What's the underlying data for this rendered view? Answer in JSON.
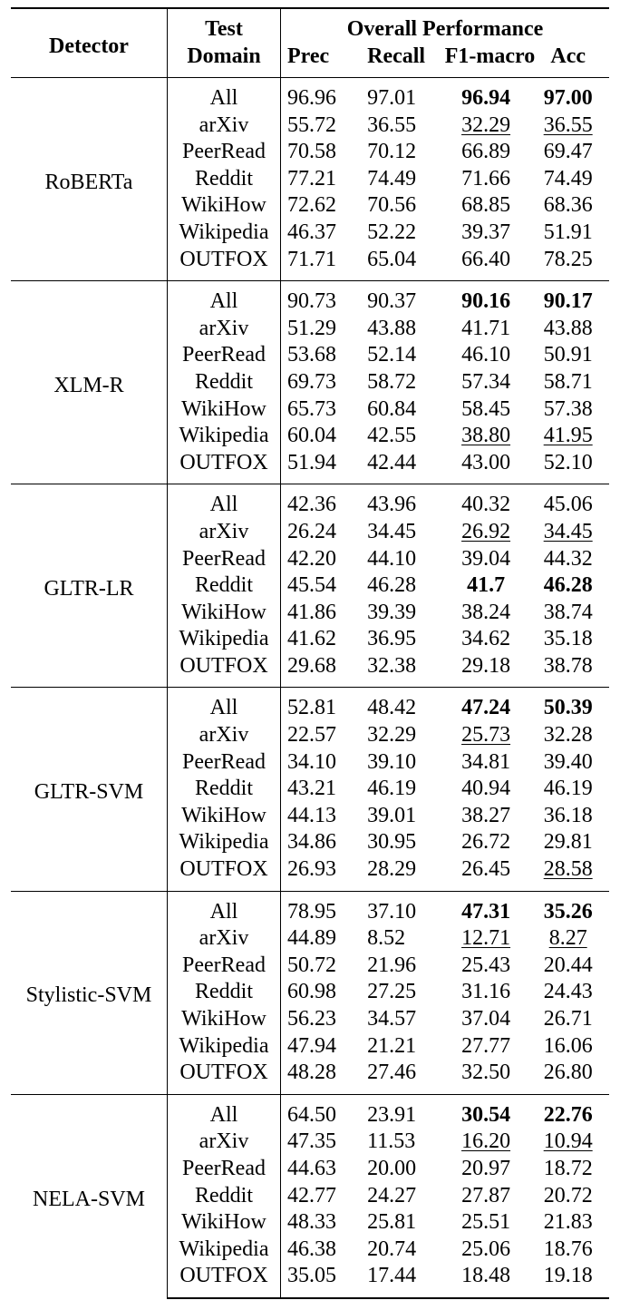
{
  "table": {
    "headers": {
      "detector": "Detector",
      "test_domain_line1": "Test",
      "test_domain_line2": "Domain",
      "overall_performance": "Overall Performance",
      "prec": "Prec",
      "recall": "Recall",
      "f1_macro": "F1-macro",
      "acc": "Acc"
    },
    "groups": [
      {
        "detector": "RoBERTa",
        "rows": [
          {
            "domain": "All",
            "prec": "96.96",
            "recall": "97.01",
            "f1": "96.94",
            "acc": "97.00",
            "f1_style": "bold",
            "acc_style": "bold"
          },
          {
            "domain": "arXiv",
            "prec": "55.72",
            "recall": "36.55",
            "f1": "32.29",
            "acc": "36.55",
            "f1_style": "underline",
            "acc_style": "underline"
          },
          {
            "domain": "PeerRead",
            "prec": "70.58",
            "recall": "70.12",
            "f1": "66.89",
            "acc": "69.47",
            "f1_style": "",
            "acc_style": ""
          },
          {
            "domain": "Reddit",
            "prec": "77.21",
            "recall": "74.49",
            "f1": "71.66",
            "acc": "74.49",
            "f1_style": "",
            "acc_style": ""
          },
          {
            "domain": "WikiHow",
            "prec": "72.62",
            "recall": "70.56",
            "f1": "68.85",
            "acc": "68.36",
            "f1_style": "",
            "acc_style": ""
          },
          {
            "domain": "Wikipedia",
            "prec": "46.37",
            "recall": "52.22",
            "f1": "39.37",
            "acc": "51.91",
            "f1_style": "",
            "acc_style": ""
          },
          {
            "domain": "OUTFOX",
            "prec": "71.71",
            "recall": "65.04",
            "f1": "66.40",
            "acc": "78.25",
            "f1_style": "",
            "acc_style": ""
          }
        ]
      },
      {
        "detector": "XLM-R",
        "rows": [
          {
            "domain": "All",
            "prec": "90.73",
            "recall": "90.37",
            "f1": "90.16",
            "acc": "90.17",
            "f1_style": "bold",
            "acc_style": "bold"
          },
          {
            "domain": "arXiv",
            "prec": "51.29",
            "recall": "43.88",
            "f1": "41.71",
            "acc": "43.88",
            "f1_style": "",
            "acc_style": ""
          },
          {
            "domain": "PeerRead",
            "prec": "53.68",
            "recall": "52.14",
            "f1": "46.10",
            "acc": "50.91",
            "f1_style": "",
            "acc_style": ""
          },
          {
            "domain": "Reddit",
            "prec": "69.73",
            "recall": "58.72",
            "f1": "57.34",
            "acc": "58.71",
            "f1_style": "",
            "acc_style": ""
          },
          {
            "domain": "WikiHow",
            "prec": "65.73",
            "recall": "60.84",
            "f1": "58.45",
            "acc": "57.38",
            "f1_style": "",
            "acc_style": ""
          },
          {
            "domain": "Wikipedia",
            "prec": "60.04",
            "recall": "42.55",
            "f1": "38.80",
            "acc": "41.95",
            "f1_style": "underline",
            "acc_style": "underline"
          },
          {
            "domain": "OUTFOX",
            "prec": "51.94",
            "recall": "42.44",
            "f1": "43.00",
            "acc": "52.10",
            "f1_style": "",
            "acc_style": ""
          }
        ]
      },
      {
        "detector": "GLTR-LR",
        "rows": [
          {
            "domain": "All",
            "prec": "42.36",
            "recall": "43.96",
            "f1": "40.32",
            "acc": "45.06",
            "f1_style": "",
            "acc_style": ""
          },
          {
            "domain": "arXiv",
            "prec": "26.24",
            "recall": "34.45",
            "f1": "26.92",
            "acc": "34.45",
            "f1_style": "underline",
            "acc_style": "underline"
          },
          {
            "domain": "PeerRead",
            "prec": "42.20",
            "recall": "44.10",
            "f1": "39.04",
            "acc": "44.32",
            "f1_style": "",
            "acc_style": ""
          },
          {
            "domain": "Reddit",
            "prec": "45.54",
            "recall": "46.28",
            "f1": "41.7",
            "acc": "46.28",
            "f1_style": "bold",
            "acc_style": "bold"
          },
          {
            "domain": "WikiHow",
            "prec": "41.86",
            "recall": "39.39",
            "f1": "38.24",
            "acc": "38.74",
            "f1_style": "",
            "acc_style": ""
          },
          {
            "domain": "Wikipedia",
            "prec": "41.62",
            "recall": "36.95",
            "f1": "34.62",
            "acc": "35.18",
            "f1_style": "",
            "acc_style": ""
          },
          {
            "domain": "OUTFOX",
            "prec": "29.68",
            "recall": "32.38",
            "f1": "29.18",
            "acc": "38.78",
            "f1_style": "",
            "acc_style": ""
          }
        ]
      },
      {
        "detector": "GLTR-SVM",
        "rows": [
          {
            "domain": "All",
            "prec": "52.81",
            "recall": "48.42",
            "f1": "47.24",
            "acc": "50.39",
            "f1_style": "bold",
            "acc_style": "bold"
          },
          {
            "domain": "arXiv",
            "prec": "22.57",
            "recall": "32.29",
            "f1": "25.73",
            "acc": "32.28",
            "f1_style": "underline",
            "acc_style": ""
          },
          {
            "domain": "PeerRead",
            "prec": "34.10",
            "recall": "39.10",
            "f1": "34.81",
            "acc": "39.40",
            "f1_style": "",
            "acc_style": ""
          },
          {
            "domain": "Reddit",
            "prec": "43.21",
            "recall": "46.19",
            "f1": "40.94",
            "acc": "46.19",
            "f1_style": "",
            "acc_style": ""
          },
          {
            "domain": "WikiHow",
            "prec": "44.13",
            "recall": "39.01",
            "f1": "38.27",
            "acc": "36.18",
            "f1_style": "",
            "acc_style": ""
          },
          {
            "domain": "Wikipedia",
            "prec": "34.86",
            "recall": "30.95",
            "f1": "26.72",
            "acc": "29.81",
            "f1_style": "",
            "acc_style": ""
          },
          {
            "domain": "OUTFOX",
            "prec": "26.93",
            "recall": "28.29",
            "f1": "26.45",
            "acc": "28.58",
            "f1_style": "",
            "acc_style": "underline"
          }
        ]
      },
      {
        "detector": "Stylistic-SVM",
        "rows": [
          {
            "domain": "All",
            "prec": "78.95",
            "recall": "37.10",
            "f1": "47.31",
            "acc": "35.26",
            "f1_style": "bold",
            "acc_style": "bold"
          },
          {
            "domain": "arXiv",
            "prec": "44.89",
            "recall": "8.52",
            "f1": "12.71",
            "acc": "8.27",
            "f1_style": "underline",
            "acc_style": "underline"
          },
          {
            "domain": "PeerRead",
            "prec": "50.72",
            "recall": "21.96",
            "f1": "25.43",
            "acc": "20.44",
            "f1_style": "",
            "acc_style": ""
          },
          {
            "domain": "Reddit",
            "prec": "60.98",
            "recall": "27.25",
            "f1": "31.16",
            "acc": "24.43",
            "f1_style": "",
            "acc_style": ""
          },
          {
            "domain": "WikiHow",
            "prec": "56.23",
            "recall": "34.57",
            "f1": "37.04",
            "acc": "26.71",
            "f1_style": "",
            "acc_style": ""
          },
          {
            "domain": "Wikipedia",
            "prec": "47.94",
            "recall": "21.21",
            "f1": "27.77",
            "acc": "16.06",
            "f1_style": "",
            "acc_style": ""
          },
          {
            "domain": "OUTFOX",
            "prec": "48.28",
            "recall": "27.46",
            "f1": "32.50",
            "acc": "26.80",
            "f1_style": "",
            "acc_style": ""
          }
        ]
      },
      {
        "detector": "NELA-SVM",
        "rows": [
          {
            "domain": "All",
            "prec": "64.50",
            "recall": "23.91",
            "f1": "30.54",
            "acc": "22.76",
            "f1_style": "bold",
            "acc_style": "bold"
          },
          {
            "domain": "arXiv",
            "prec": "47.35",
            "recall": "11.53",
            "f1": "16.20",
            "acc": "10.94",
            "f1_style": "underline",
            "acc_style": "underline"
          },
          {
            "domain": "PeerRead",
            "prec": "44.63",
            "recall": "20.00",
            "f1": "20.97",
            "acc": "18.72",
            "f1_style": "",
            "acc_style": ""
          },
          {
            "domain": "Reddit",
            "prec": "42.77",
            "recall": "24.27",
            "f1": "27.87",
            "acc": "20.72",
            "f1_style": "",
            "acc_style": ""
          },
          {
            "domain": "WikiHow",
            "prec": "48.33",
            "recall": "25.81",
            "f1": "25.51",
            "acc": "21.83",
            "f1_style": "",
            "acc_style": ""
          },
          {
            "domain": "Wikipedia",
            "prec": "46.38",
            "recall": "20.74",
            "f1": "25.06",
            "acc": "18.76",
            "f1_style": "",
            "acc_style": ""
          },
          {
            "domain": "OUTFOX",
            "prec": "35.05",
            "recall": "17.44",
            "f1": "18.48",
            "acc": "19.18",
            "f1_style": "",
            "acc_style": ""
          }
        ]
      }
    ]
  }
}
